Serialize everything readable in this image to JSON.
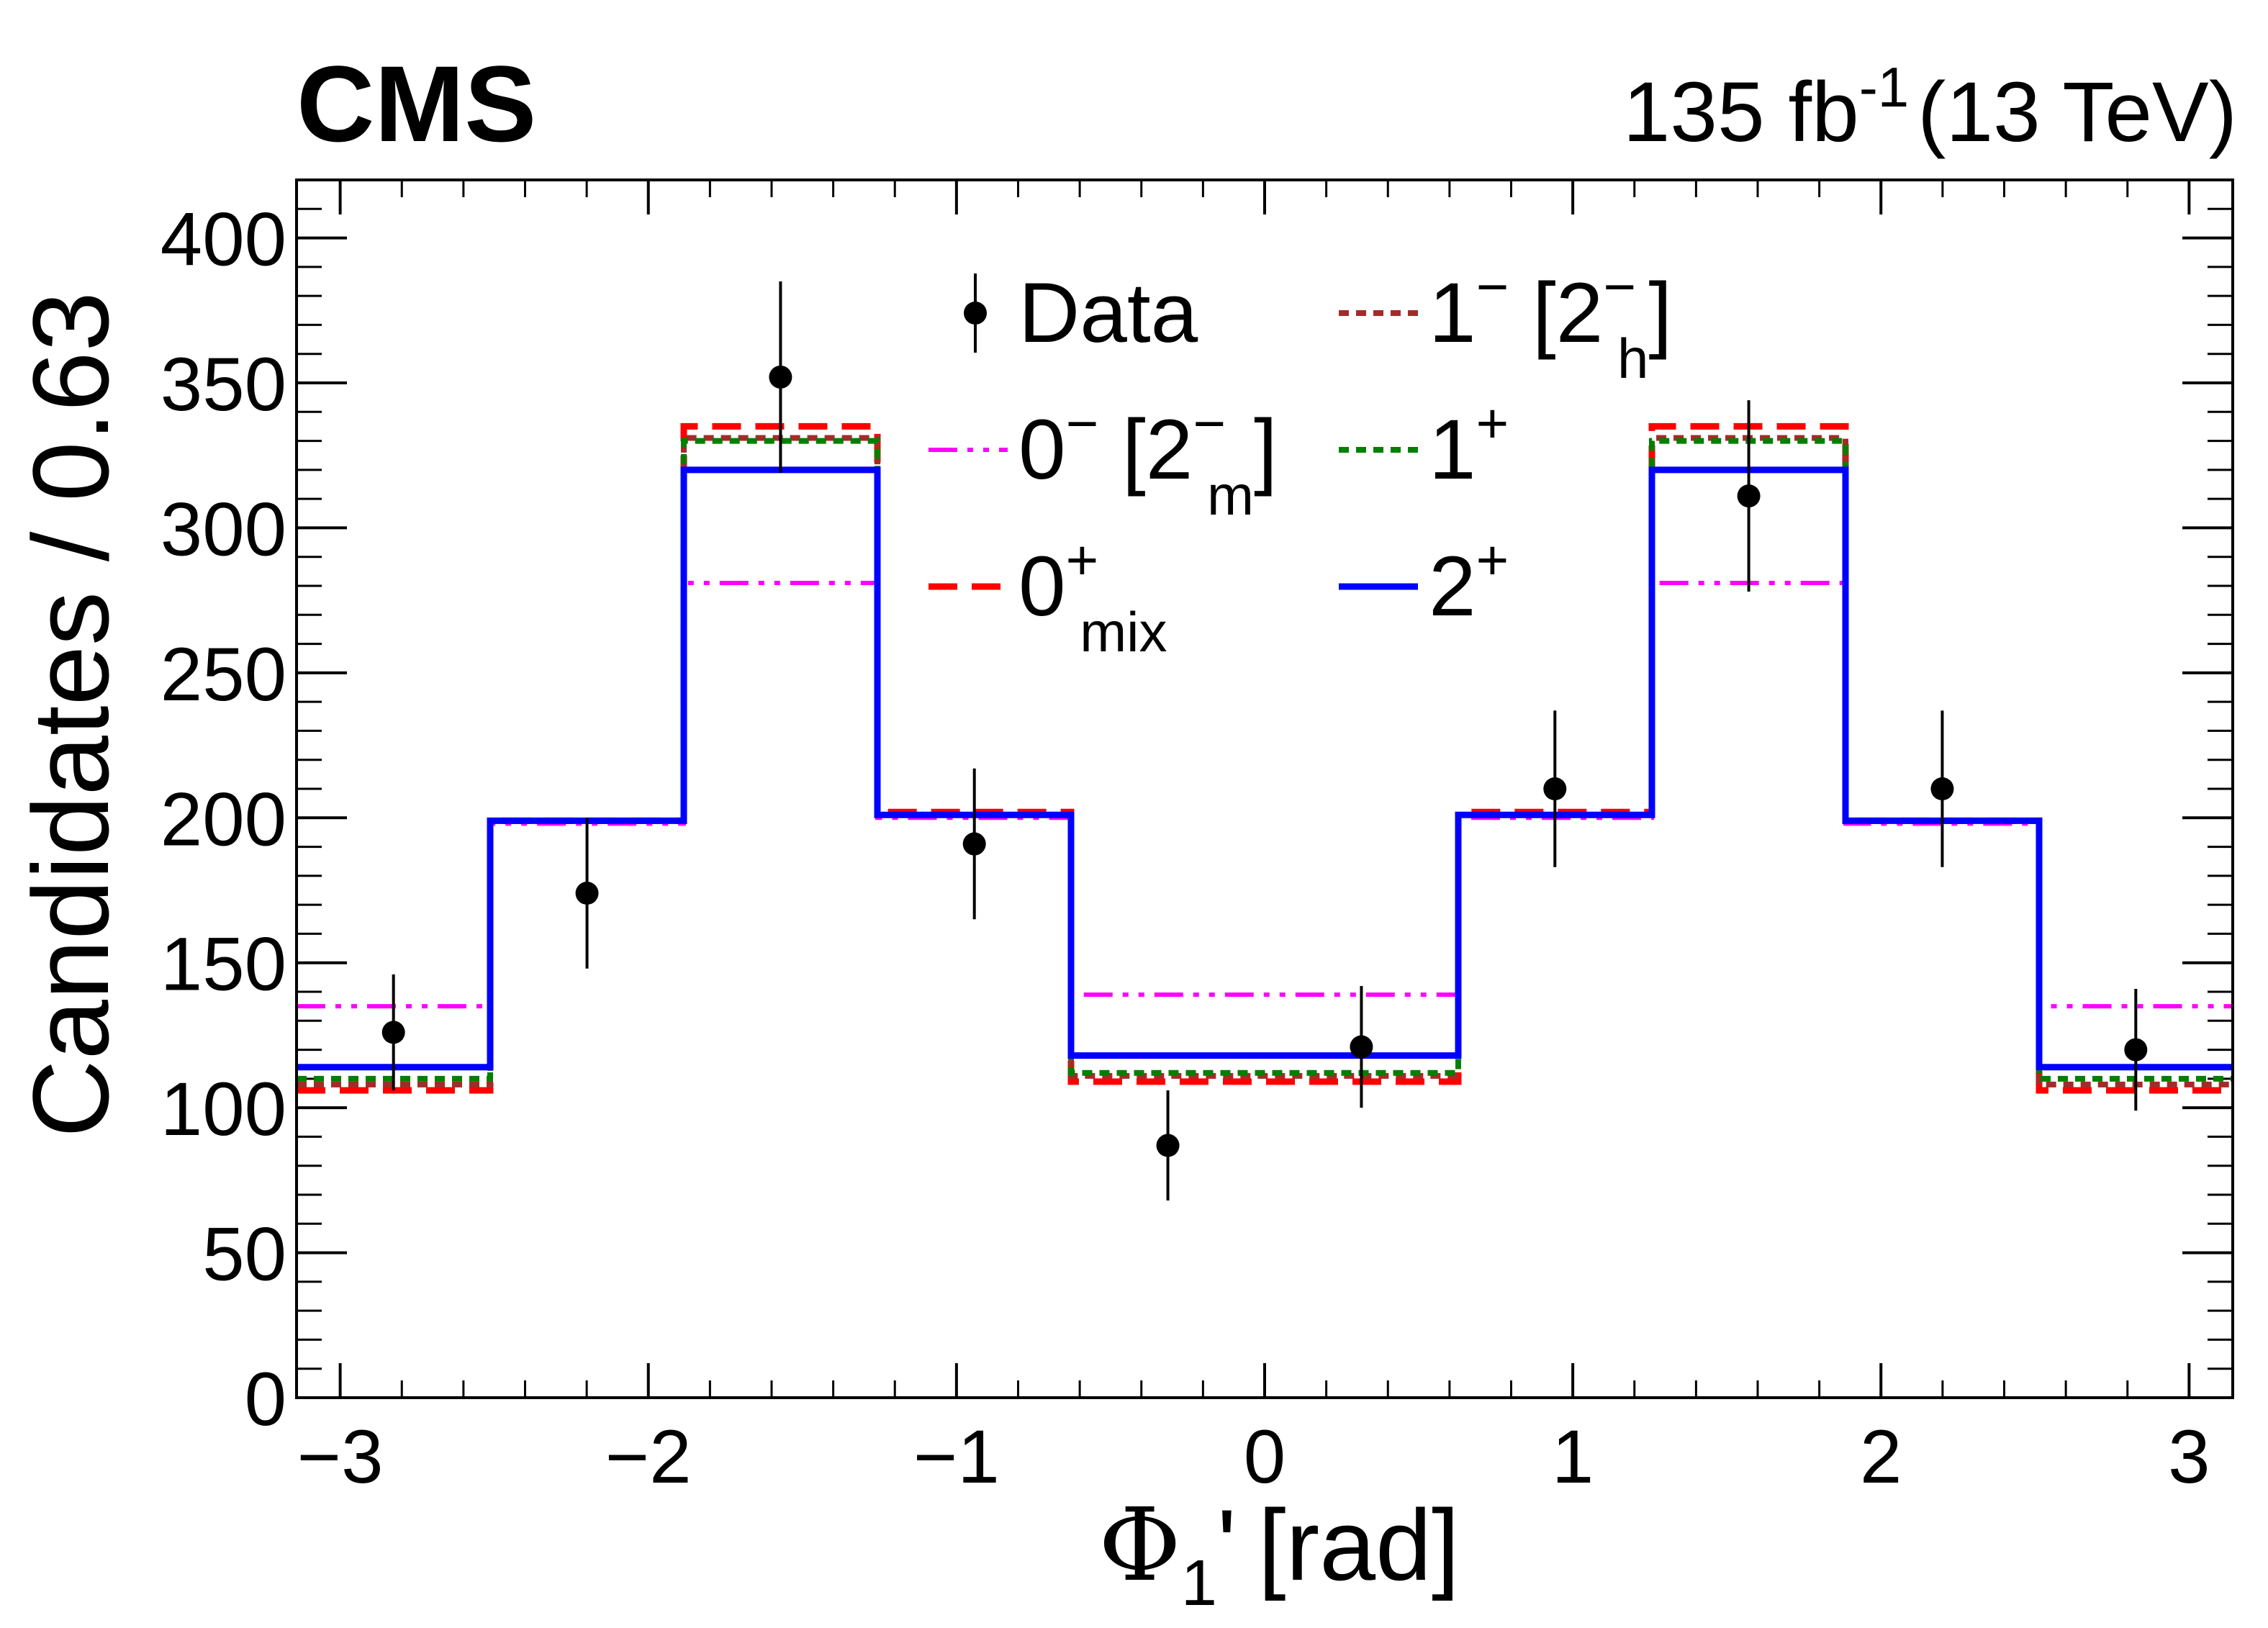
{
  "header": {
    "experiment": "CMS",
    "lumi_value": "135 fb",
    "lumi_exp": "-1",
    "energy": "(13 TeV)"
  },
  "chart_data": {
    "type": "histogram",
    "xlabel": "[rad]",
    "xlabel_symbol": "Φ",
    "xlabel_sub": "1",
    "xlabel_prime": "'",
    "ylabel": "Candidates / 0.63",
    "xlim": [
      -3.14159,
      3.14159
    ],
    "ylim": [
      0,
      420
    ],
    "x_ticks": [
      -3,
      -2,
      -1,
      0,
      1,
      2,
      3
    ],
    "x_tick_labels": [
      "−3",
      "−2",
      "−1",
      "0",
      "1",
      "2",
      "3"
    ],
    "y_ticks": [
      0,
      50,
      100,
      150,
      200,
      250,
      300,
      350,
      400
    ],
    "y_tick_labels": [
      "0",
      "50",
      "100",
      "150",
      "200",
      "250",
      "300",
      "350",
      "400"
    ],
    "bin_edges": [
      -3.14159,
      -2.51327,
      -1.88496,
      -1.25664,
      -0.62832,
      0,
      0.62832,
      1.25664,
      1.88496,
      2.51327,
      3.14159
    ],
    "series": [
      {
        "key": "zero_minus",
        "color": "#ff00ff",
        "style": "dash-dot-dot",
        "values": [
          135,
          198,
          281,
          200,
          139,
          139,
          200,
          281,
          198,
          135
        ]
      },
      {
        "key": "zero_mix",
        "color": "#ff0000",
        "style": "dashed",
        "values": [
          106,
          199,
          335,
          202,
          109,
          109,
          202,
          335,
          199,
          106
        ]
      },
      {
        "key": "one_minus",
        "color": "#a52a2a",
        "style": "dotted",
        "values": [
          108,
          199,
          331,
          201,
          111,
          111,
          201,
          331,
          199,
          108
        ]
      },
      {
        "key": "one_plus",
        "color": "#008000",
        "style": "dotted",
        "values": [
          110,
          199,
          330,
          201,
          112,
          112,
          201,
          330,
          199,
          110
        ]
      },
      {
        "key": "two_plus",
        "color": "#0000ff",
        "style": "solid",
        "values": [
          114,
          199,
          320,
          201,
          118,
          118,
          201,
          320,
          199,
          114
        ]
      }
    ],
    "data": {
      "x": [
        -2.827,
        -2.199,
        -1.571,
        -0.942,
        -0.314,
        0.314,
        0.942,
        1.571,
        2.199,
        2.827
      ],
      "y": [
        126,
        174,
        352,
        191,
        87,
        121,
        210,
        311,
        210,
        120
      ],
      "err": [
        20,
        26,
        33,
        26,
        19,
        21,
        27,
        33,
        27,
        21
      ]
    },
    "legend": {
      "placement": "top-center",
      "entries": [
        {
          "key": "data",
          "main": "Data",
          "sup": "",
          "sub": "",
          "tail": ""
        },
        {
          "key": "one_minus",
          "main": "1",
          "sup": "−",
          "sub": "",
          "tail": " [2",
          "tail_sup": "−",
          "tail_sub": "h",
          "tail_close": "]"
        },
        {
          "key": "zero_minus",
          "main": "0",
          "sup": "−",
          "sub": "",
          "tail": " [2",
          "tail_sup": "−",
          "tail_sub": "m",
          "tail_close": "]"
        },
        {
          "key": "one_plus",
          "main": "1",
          "sup": "+",
          "sub": "",
          "tail": ""
        },
        {
          "key": "zero_mix",
          "main": "0",
          "sup": "+",
          "sub": "mix",
          "tail": ""
        },
        {
          "key": "two_plus",
          "main": "2",
          "sup": "+",
          "sub": "",
          "tail": ""
        }
      ]
    }
  }
}
